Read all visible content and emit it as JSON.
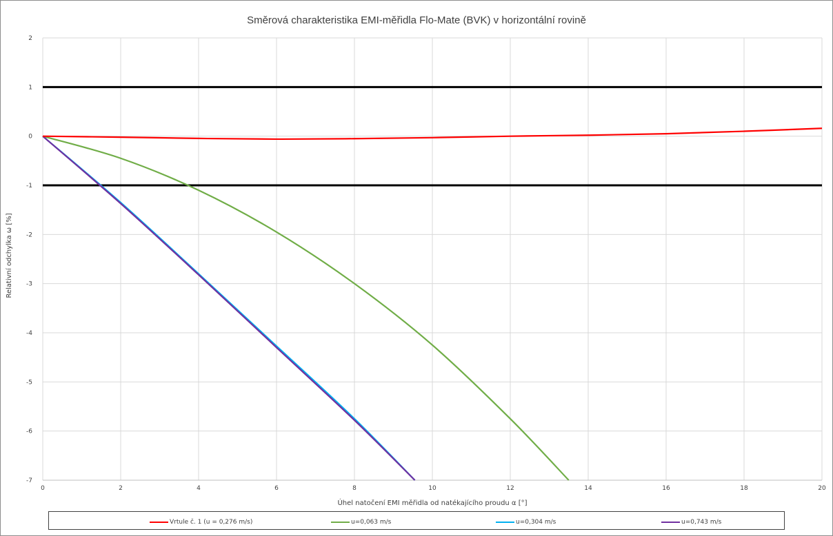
{
  "chart_data": {
    "type": "line",
    "title": "Směrová charakteristika EMI-měřidla Flo-Mate (BVK) v horizontální rovině",
    "xlabel": "Úhel natočení EMI měřidla od natékajícího proudu α [°]",
    "ylabel": "Relativní odchylka ω [%]",
    "xlim": [
      0,
      20
    ],
    "ylim": [
      -7,
      2
    ],
    "x_ticks": [
      "0",
      "2",
      "4",
      "6",
      "8",
      "10",
      "12",
      "14",
      "16",
      "18",
      "20"
    ],
    "y_ticks": [
      "2",
      "1",
      "0",
      "-1",
      "-2",
      "-3",
      "-4",
      "-5",
      "-6",
      "-7"
    ],
    "grid": true,
    "reference_lines": [
      1,
      -1
    ],
    "legend_position": "bottom",
    "series": [
      {
        "name": "Vrtule č. 1  (u = 0,276 m/s)",
        "color": "#ff0000",
        "x": [
          0,
          2,
          4,
          6,
          8,
          10,
          12,
          14,
          16,
          18,
          20
        ],
        "y": [
          0.0,
          -0.02,
          -0.045,
          -0.06,
          -0.05,
          -0.03,
          0.0,
          0.02,
          0.05,
          0.1,
          0.16
        ]
      },
      {
        "name": "u=0,063 m/s",
        "color": "#70ad47",
        "x": [
          0,
          2,
          4,
          6,
          8,
          10,
          12,
          13.5
        ],
        "y": [
          0.0,
          -0.45,
          -1.1,
          -1.95,
          -3.0,
          -4.25,
          -5.75,
          -7.0
        ]
      },
      {
        "name": "u=0,304 m/s",
        "color": "#00b0f0",
        "x": [
          0,
          2,
          4,
          6,
          8,
          9.55
        ],
        "y": [
          0.0,
          -1.35,
          -2.8,
          -4.27,
          -5.75,
          -7.0
        ]
      },
      {
        "name": "u=0,743 m/s",
        "color": "#7030a0",
        "x": [
          0,
          2,
          4,
          6,
          8,
          9.55
        ],
        "y": [
          0.0,
          -1.37,
          -2.82,
          -4.3,
          -5.78,
          -7.0
        ]
      }
    ]
  }
}
